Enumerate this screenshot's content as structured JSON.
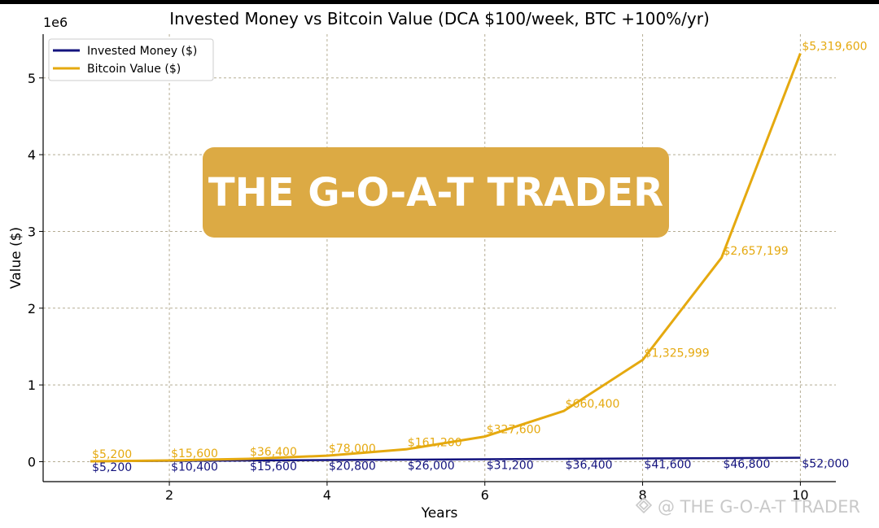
{
  "chart_data": {
    "type": "line",
    "title": "Invested Money vs Bitcoin Value (DCA $100/week, BTC +100%/yr)",
    "xlabel": "Years",
    "ylabel": "Value ($)",
    "y_offset_label": "1e6",
    "x": [
      1,
      2,
      3,
      4,
      5,
      6,
      7,
      8,
      9,
      10
    ],
    "xlim": [
      0.4,
      10.45
    ],
    "ylim": [
      -260000,
      5570000
    ],
    "x_ticks": [
      2,
      4,
      6,
      8,
      10
    ],
    "x_tick_labels": [
      "2",
      "4",
      "6",
      "8",
      "10"
    ],
    "y_ticks": [
      0,
      1000000,
      2000000,
      3000000,
      4000000,
      5000000
    ],
    "y_tick_labels": [
      "0",
      "1",
      "2",
      "3",
      "4",
      "5"
    ],
    "grid": true,
    "legend_position": "top-left",
    "series": [
      {
        "name": "Invested Money ($)",
        "color": "#13137e",
        "values": [
          5200,
          10400,
          15600,
          20800,
          26000,
          31200,
          36400,
          41600,
          46800,
          52000
        ],
        "labels": [
          "$5,200",
          "$10,400",
          "$15,600",
          "$20,800",
          "$26,000",
          "$31,200",
          "$36,400",
          "$41,600",
          "$46,800",
          "$52,000"
        ]
      },
      {
        "name": "Bitcoin Value ($)",
        "color": "#e5a90f",
        "values": [
          5200,
          15600,
          36400,
          78000,
          161200,
          327600,
          660400,
          1325999,
          2657199,
          5319600
        ],
        "labels": [
          "$5,200",
          "$15,600",
          "$36,400",
          "$78,000",
          "$161,200",
          "$327,600",
          "$660,400",
          "$1,325,999",
          "$2,657,199",
          "$5,319,600"
        ]
      }
    ]
  },
  "watermark": {
    "banner_text": "THE G-O-A-T TRADER",
    "corner_text": "@ THE G-O-A-T TRADER",
    "banner_color": "#dcaa44"
  }
}
